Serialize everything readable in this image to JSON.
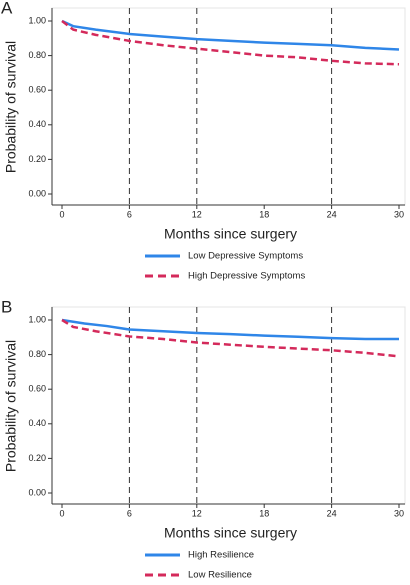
{
  "chart_data": [
    {
      "type": "line",
      "label": "A",
      "xlabel": "Months since surgery",
      "ylabel": "Probability of survival",
      "xlim": [
        0,
        30
      ],
      "ylim": [
        0,
        1
      ],
      "xticks": [
        0,
        6,
        12,
        18,
        24,
        30
      ],
      "yticks": [
        {
          "value": 0,
          "label": "0.00"
        },
        {
          "value": 0.2,
          "label": "0.20"
        },
        {
          "value": 0.4,
          "label": "0.40"
        },
        {
          "value": 0.6,
          "label": "0.60"
        },
        {
          "value": 0.8,
          "label": "0.80"
        },
        {
          "value": 1,
          "label": "1.00"
        }
      ],
      "vlines": [
        6,
        12,
        24
      ],
      "series": [
        {
          "name": "Low Depressive Symptoms",
          "color": "#2f86e8",
          "dash": false,
          "x": [
            0,
            1,
            3,
            6,
            9,
            12,
            15,
            18,
            21,
            24,
            27,
            30
          ],
          "values": [
            1,
            0.97,
            0.95,
            0.925,
            0.91,
            0.895,
            0.885,
            0.875,
            0.868,
            0.86,
            0.845,
            0.835
          ]
        },
        {
          "name": "High Depressive Symptoms",
          "color": "#d42a5b",
          "dash": true,
          "x": [
            0,
            1,
            3,
            6,
            9,
            12,
            15,
            18,
            21,
            24,
            27,
            30
          ],
          "values": [
            1,
            0.95,
            0.92,
            0.885,
            0.86,
            0.84,
            0.82,
            0.8,
            0.79,
            0.77,
            0.755,
            0.75
          ]
        }
      ]
    },
    {
      "type": "line",
      "label": "B",
      "xlabel": "Months since surgery",
      "ylabel": "Probability of survival",
      "xlim": [
        0,
        30
      ],
      "ylim": [
        0,
        1
      ],
      "xticks": [
        0,
        6,
        12,
        18,
        24,
        30
      ],
      "yticks": [
        {
          "value": 0,
          "label": "0.00"
        },
        {
          "value": 0.2,
          "label": "0.20"
        },
        {
          "value": 0.4,
          "label": "0.40"
        },
        {
          "value": 0.6,
          "label": "0.60"
        },
        {
          "value": 0.8,
          "label": "0.80"
        },
        {
          "value": 1,
          "label": "1.00"
        }
      ],
      "vlines": [
        6,
        12,
        24
      ],
      "series": [
        {
          "name": "High Resilience",
          "color": "#2f86e8",
          "dash": false,
          "x": [
            0,
            2,
            4,
            6,
            9,
            12,
            15,
            18,
            21,
            24,
            27,
            30
          ],
          "values": [
            1,
            0.98,
            0.965,
            0.945,
            0.935,
            0.925,
            0.918,
            0.91,
            0.903,
            0.895,
            0.89,
            0.89
          ]
        },
        {
          "name": "Low Resilience",
          "color": "#d42a5b",
          "dash": true,
          "x": [
            0,
            1,
            3,
            6,
            9,
            12,
            15,
            18,
            21,
            24,
            27,
            30
          ],
          "values": [
            1,
            0.96,
            0.935,
            0.905,
            0.89,
            0.87,
            0.857,
            0.845,
            0.835,
            0.825,
            0.81,
            0.79
          ]
        }
      ]
    }
  ]
}
